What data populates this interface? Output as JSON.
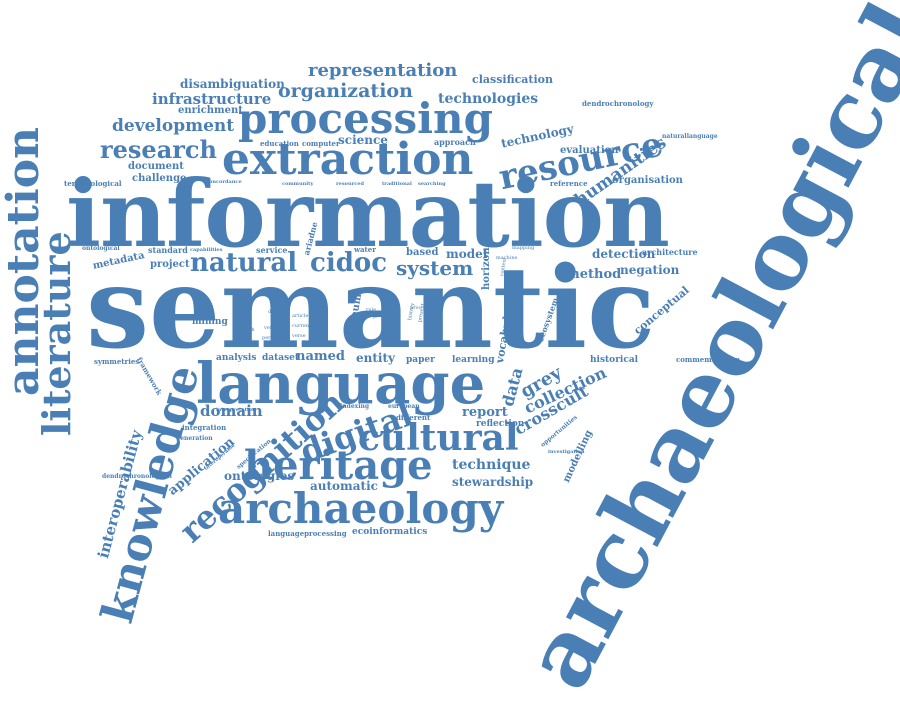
{
  "accent": "#4a7fb5",
  "words": [
    "semantic",
    "information",
    "archaeological",
    "language",
    "extraction",
    "processing",
    "annotation",
    "literature",
    "knowledge",
    "resource",
    "heritage",
    "archaeology",
    "cultural",
    "digital",
    "recognition",
    "natural",
    "cidoc",
    "system",
    "research",
    "representation",
    "organization",
    "infrastructure",
    "development",
    "humanities",
    "interoperability",
    "technique",
    "stewardship",
    "application",
    "report",
    "crosscult",
    "collection",
    "grey",
    "data",
    "domain",
    "named",
    "entity",
    "method",
    "negation",
    "detection",
    "conceptual",
    "modelling",
    "ontologies",
    "automatic",
    "technologies",
    "disambiguation",
    "classification",
    "enrichment",
    "evaluation",
    "organisation",
    "document",
    "challenge",
    "science",
    "technology",
    "approach",
    "education",
    "computer",
    "dendrochronology",
    "dendrochronological",
    "terminological",
    "concordance",
    "community",
    "resourced",
    "traditional",
    "searching",
    "reference",
    "ontological",
    "metadata",
    "standard",
    "capabilities",
    "project",
    "service",
    "based",
    "model",
    "horizon",
    "ariadne",
    "water",
    "museum",
    "vocabularies",
    "ecosystem",
    "conceptual",
    "mining",
    "analysis",
    "dataset",
    "paper",
    "learning",
    "historical",
    "commemoration",
    "symmetries",
    "framework",
    "integration",
    "generation",
    "interpretation",
    "specification",
    "interoperable",
    "indexing",
    "european",
    "different",
    "reflection",
    "investigation",
    "opportunities",
    "naturallanguage",
    "architecture",
    "languageprocessing",
    "ecoinformatics",
    "mapping",
    "machine",
    "context",
    "history",
    "present",
    "text",
    "rule",
    "describe",
    "article",
    "current",
    "verse",
    "personal",
    "venue",
    "sketch",
    "result",
    "proc"
  ]
}
